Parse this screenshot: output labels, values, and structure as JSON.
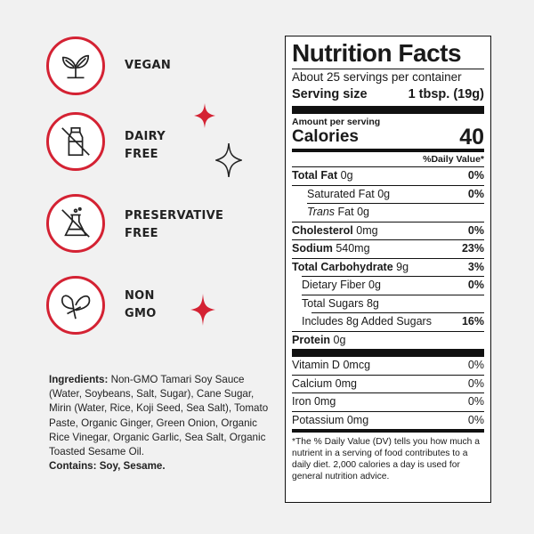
{
  "badges": [
    {
      "line1": "VEGAN",
      "line2": "",
      "icon": "leaves-icon"
    },
    {
      "line1": "DAIRY",
      "line2": "FREE",
      "icon": "no-milk-bottle-icon"
    },
    {
      "line1": "PRESERVATIVE",
      "line2": "FREE",
      "icon": "no-flask-icon"
    },
    {
      "line1": "NON",
      "line2": "GMO",
      "icon": "butterfly-leaf-icon"
    }
  ],
  "colors": {
    "accent": "#d42233",
    "background": "#f1f1f1",
    "ink": "#1a1a1a"
  },
  "ingredients": {
    "label": "Ingredients:",
    "text": "Non-GMO Tamari Soy Sauce (Water, Soybeans, Salt, Sugar), Cane Sugar, Mirin (Water, Rice, Koji Seed, Sea Salt), Tomato Paste, Organic Ginger, Green Onion, Organic Rice Vinegar, Organic Garlic, Sea Salt, Organic Toasted Sesame Oil.",
    "contains_label": "Contains:",
    "contains_text": "Soy, Sesame."
  },
  "nutrition": {
    "title": "Nutrition Facts",
    "servings": "About 25 servings per container",
    "serving_size_label": "Serving size",
    "serving_size_value": "1 tbsp. (19g)",
    "amount_per_serving": "Amount per serving",
    "calories_label": "Calories",
    "calories_value": "40",
    "dv_header": "%Daily Value*",
    "rows": {
      "total_fat": {
        "name": "Total Fat",
        "amount": "0g",
        "dv": "0%"
      },
      "sat_fat": {
        "name": "Saturated Fat",
        "amount": "0g",
        "dv": "0%"
      },
      "trans_fat": {
        "name_italic": "Trans",
        "name": "Fat",
        "amount": "0g"
      },
      "cholesterol": {
        "name": "Cholesterol",
        "amount": "0mg",
        "dv": "0%"
      },
      "sodium": {
        "name": "Sodium",
        "amount": "540mg",
        "dv": "23%"
      },
      "carb": {
        "name": "Total Carbohydrate",
        "amount": "9g",
        "dv": "3%"
      },
      "fiber": {
        "name": "Dietary Fiber",
        "amount": "0g",
        "dv": "0%"
      },
      "sugars": {
        "name": "Total Sugars",
        "amount": "8g"
      },
      "added_sugars": {
        "name": "Includes 8g Added Sugars",
        "dv": "16%"
      },
      "protein": {
        "name": "Protein",
        "amount": "0g"
      },
      "vit_d": {
        "name": "Vitamin D",
        "amount": "0mcg",
        "dv": "0%"
      },
      "calcium": {
        "name": "Calcium",
        "amount": "0mg",
        "dv": "0%"
      },
      "iron": {
        "name": "Iron",
        "amount": "0mg",
        "dv": "0%"
      },
      "potassium": {
        "name": "Potassium",
        "amount": "0mg",
        "dv": "0%"
      }
    },
    "footnote": "*The % Daily Value (DV) tells you how much a nutrient in a serving of food contributes to a daily diet. 2,000 calories a day is used for general nutrition advice."
  }
}
